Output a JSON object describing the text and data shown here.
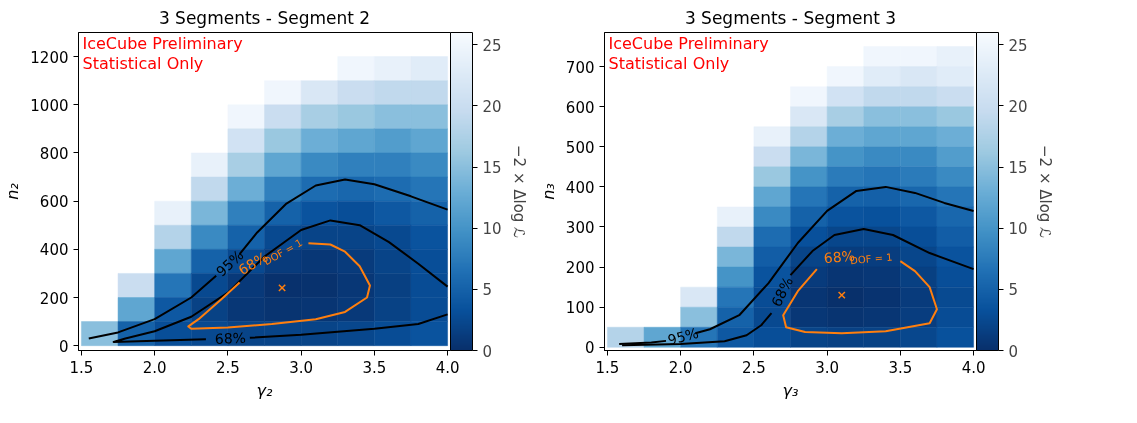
{
  "chart_data": [
    {
      "type": "heatmap",
      "title": "3 Segments - Segment 2",
      "xlabel": "γ₂",
      "ylabel": "n₂",
      "clabel": "−2 × Δlog ℒ",
      "annotations": [
        "IceCube Preliminary",
        "Statistical Only"
      ],
      "xlim": [
        1.48,
        4.02
      ],
      "ylim": [
        -20,
        1300
      ],
      "xticks": [
        1.5,
        {
          "value": 2,
          "label": "2.0"
        },
        2.5,
        {
          "value": 3,
          "label": "3.0"
        },
        3.5,
        {
          "value": 4,
          "label": "4.0"
        }
      ],
      "yticks": [
        0,
        200,
        400,
        600,
        800,
        1000,
        1200
      ],
      "clim": [
        0,
        26
      ],
      "cticks": [
        0,
        5,
        10,
        15,
        20,
        25
      ],
      "x": [
        1.625,
        1.875,
        2.125,
        2.375,
        2.625,
        2.875,
        3.125,
        3.375,
        3.625,
        3.875
      ],
      "y": [
        1150,
        1050,
        950,
        850,
        750,
        650,
        550,
        450,
        350,
        250,
        150,
        50
      ],
      "cells": [
        [
          null,
          null,
          null,
          null,
          null,
          null,
          null,
          25,
          24,
          23
        ],
        [
          null,
          null,
          null,
          null,
          null,
          25,
          22,
          20,
          19,
          19
        ],
        [
          null,
          null,
          null,
          null,
          25,
          20,
          17,
          16,
          15,
          15
        ],
        [
          null,
          null,
          null,
          null,
          21,
          16,
          13,
          12,
          11,
          12
        ],
        [
          null,
          null,
          null,
          24,
          17,
          12,
          9,
          8,
          8,
          9
        ],
        [
          null,
          null,
          null,
          19,
          13,
          8,
          6,
          5.5,
          6,
          7
        ],
        [
          null,
          null,
          24,
          14,
          8,
          5,
          3.5,
          3,
          4,
          5
        ],
        [
          null,
          null,
          18,
          9,
          5,
          2.5,
          2,
          2,
          2.5,
          3.5
        ],
        [
          null,
          null,
          12,
          5,
          2.5,
          1.2,
          0.8,
          1.2,
          2,
          3
        ],
        [
          null,
          20,
          7,
          2.5,
          1,
          0.2,
          0.3,
          0.8,
          1.6,
          2.8
        ],
        [
          null,
          12,
          4,
          1.8,
          0.8,
          0.5,
          0.6,
          1,
          1.8,
          2.8
        ],
        [
          15,
          5,
          3,
          2.5,
          2,
          2,
          2,
          2.3,
          2.8,
          3.5
        ]
      ],
      "series": [
        {
          "type": "line",
          "name": "95%",
          "color": "#000000",
          "x": [
            1.55,
            1.75,
            2.0,
            2.25,
            2.42,
            2.5,
            2.58,
            2.7,
            2.9,
            3.1,
            3.3,
            3.5,
            3.75,
            4.0
          ],
          "values": [
            30,
            55,
            110,
            200,
            290,
            null,
            380,
            470,
            590,
            665,
            690,
            670,
            620,
            565
          ]
        },
        {
          "type": "line",
          "name": "68%",
          "color": "#000000",
          "x": [
            4.0,
            3.8,
            3.6,
            3.4,
            3.2,
            3.0,
            2.75,
            2.5,
            2.25,
            2.0,
            1.8,
            1.72,
            2.0,
            2.35,
            2.5,
            2.65,
            3.0,
            3.5,
            3.8,
            4.0
          ],
          "values": [
            245,
            340,
            430,
            500,
            520,
            480,
            370,
            220,
            120,
            60,
            30,
            15,
            20,
            27,
            null,
            33,
            45,
            70,
            90,
            130
          ]
        },
        {
          "type": "line",
          "name": "68%$_{DOF = 1}$",
          "color": "#ff7f0e",
          "x": [
            3.05,
            3.2,
            3.3,
            3.4,
            3.47,
            3.45,
            3.3,
            3.1,
            2.8,
            2.5,
            2.25,
            2.23,
            2.3,
            2.45,
            2.58
          ],
          "values": [
            425,
            420,
            390,
            330,
            250,
            200,
            140,
            110,
            90,
            75,
            70,
            80,
            110,
            190,
            262
          ]
        },
        {
          "type": "scatter",
          "color": "#ff7f0e",
          "marker": "cross",
          "x": [
            2.87
          ],
          "values": [
            240
          ]
        }
      ]
    },
    {
      "type": "heatmap",
      "title": "3 Segments - Segment 3",
      "xlabel": "γ₃",
      "ylabel": "n₃",
      "clabel": "−2 × Δlog ℒ",
      "annotations": [
        "IceCube Preliminary",
        "Statistical Only"
      ],
      "xlim": [
        1.48,
        4.02
      ],
      "ylim": [
        -8,
        785
      ],
      "xticks": [
        1.5,
        {
          "value": 2,
          "label": "2.0"
        },
        2.5,
        {
          "value": 3,
          "label": "3.0"
        },
        3.5,
        {
          "value": 4,
          "label": "4.0"
        }
      ],
      "yticks": [
        0,
        100,
        200,
        300,
        400,
        500,
        600,
        700
      ],
      "clim": [
        0,
        26
      ],
      "cticks": [
        0,
        5,
        10,
        15,
        20,
        25
      ],
      "x": [
        1.625,
        1.875,
        2.125,
        2.375,
        2.625,
        2.875,
        3.125,
        3.375,
        3.625,
        3.875
      ],
      "y": [
        725,
        675,
        625,
        575,
        525,
        475,
        425,
        375,
        325,
        275,
        225,
        175,
        125,
        75,
        25
      ],
      "cells": [
        [
          null,
          null,
          null,
          null,
          null,
          null,
          null,
          25,
          25,
          24
        ],
        [
          null,
          null,
          null,
          null,
          null,
          null,
          25,
          23,
          22,
          23
        ],
        [
          null,
          null,
          null,
          null,
          null,
          25,
          21,
          19,
          19,
          20
        ],
        [
          null,
          null,
          null,
          null,
          null,
          22,
          17,
          15,
          15,
          16
        ],
        [
          null,
          null,
          null,
          null,
          24,
          18,
          13,
          12,
          12,
          13
        ],
        [
          null,
          null,
          null,
          null,
          20,
          14,
          10,
          9,
          9,
          11
        ],
        [
          null,
          null,
          null,
          null,
          16,
          10,
          7.5,
          7,
          7.5,
          9
        ],
        [
          null,
          null,
          null,
          null,
          12,
          7,
          5,
          4.8,
          5.5,
          7
        ],
        [
          null,
          null,
          null,
          24,
          9,
          5,
          3.5,
          3.3,
          4,
          5.5
        ],
        [
          null,
          null,
          null,
          19,
          6,
          3.2,
          2.2,
          2.2,
          3,
          4.5
        ],
        [
          null,
          null,
          null,
          14,
          4.5,
          2,
          1.3,
          1.4,
          2.2,
          3.5
        ],
        [
          null,
          null,
          null,
          10,
          3.5,
          1.2,
          0.6,
          0.8,
          1.6,
          3
        ],
        [
          null,
          null,
          22,
          7,
          2.8,
          0.6,
          0.1,
          0.4,
          1.2,
          2.6
        ],
        [
          null,
          null,
          15,
          5,
          2.5,
          0.8,
          0.5,
          0.7,
          1.4,
          2.8
        ],
        [
          18,
          12,
          7,
          4,
          3,
          2,
          1.7,
          1.8,
          2.3,
          3.3
        ]
      ],
      "series": [
        {
          "type": "line",
          "name": "95%",
          "color": "#000000",
          "x": [
            1.58,
            1.8,
            1.9,
            2.0,
            2.1,
            2.2,
            2.4,
            2.6,
            2.8,
            3.0,
            3.2,
            3.4,
            3.6,
            3.8,
            4.0
          ],
          "values": [
            8,
            12,
            16,
            null,
            35,
            45,
            80,
            160,
            260,
            340,
            390,
            400,
            385,
            360,
            340
          ]
        },
        {
          "type": "line",
          "name": "68%",
          "color": "#000000",
          "x": [
            1.6,
            2.0,
            2.3,
            2.45,
            2.55,
            2.62,
            2.68,
            2.75,
            2.9,
            3.05,
            3.25,
            3.45,
            3.7,
            4.0
          ],
          "values": [
            5,
            8,
            15,
            30,
            55,
            85,
            null,
            180,
            240,
            280,
            295,
            280,
            235,
            195
          ]
        },
        {
          "type": "line",
          "name": "68%$_{DOF = 1}$",
          "color": "#ff7f0e",
          "x": [
            3.5,
            3.6,
            3.7,
            3.75,
            3.7,
            3.4,
            3.1,
            2.85,
            2.72,
            2.7,
            2.8,
            2.93
          ],
          "values": [
            215,
            190,
            150,
            95,
            60,
            40,
            35,
            38,
            50,
            80,
            140,
            195
          ]
        },
        {
          "type": "scatter",
          "color": "#ff7f0e",
          "marker": "cross",
          "x": [
            3.1
          ],
          "values": [
            130
          ]
        }
      ]
    }
  ]
}
